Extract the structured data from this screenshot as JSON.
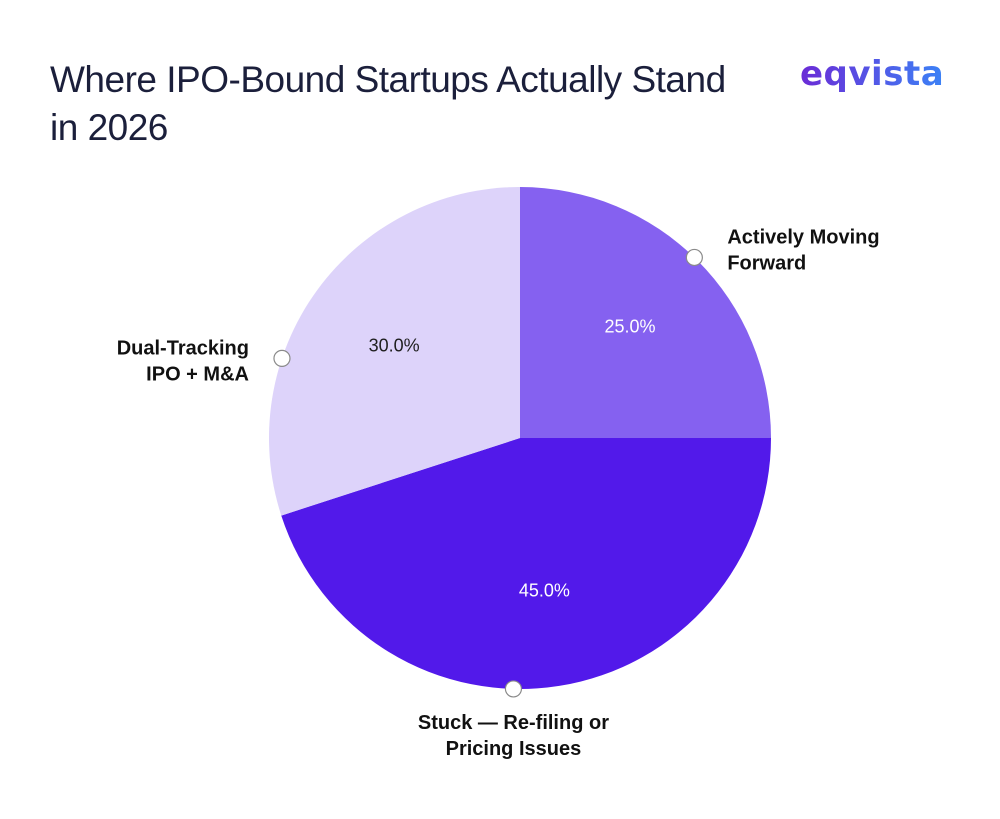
{
  "header": {
    "title": "Where IPO-Bound Startups Actually Stand in 2026",
    "logo_text": "eqvista"
  },
  "colors": {
    "title": "#1b1f3b",
    "logo_start": "#6b2bd6",
    "logo_end": "#3b82f6"
  },
  "chart_data": {
    "type": "pie",
    "start_angle": "top",
    "direction": "clockwise",
    "slices": [
      {
        "label_lines": [
          "Actively Moving",
          "Forward"
        ],
        "value": 25.0,
        "value_label": "25.0%",
        "color": "#8561f0",
        "value_text_color": "#ffffff"
      },
      {
        "label_lines": [
          "Stuck — Re-filing or",
          "Pricing Issues"
        ],
        "value": 45.0,
        "value_label": "45.0%",
        "color": "#5219ea",
        "value_text_color": "#ffffff"
      },
      {
        "label_lines": [
          "Dual-Tracking",
          "IPO + M&A"
        ],
        "value": 30.0,
        "value_label": "30.0%",
        "color": "#ddd3fa",
        "value_text_color": "#1f1f1f"
      }
    ]
  }
}
